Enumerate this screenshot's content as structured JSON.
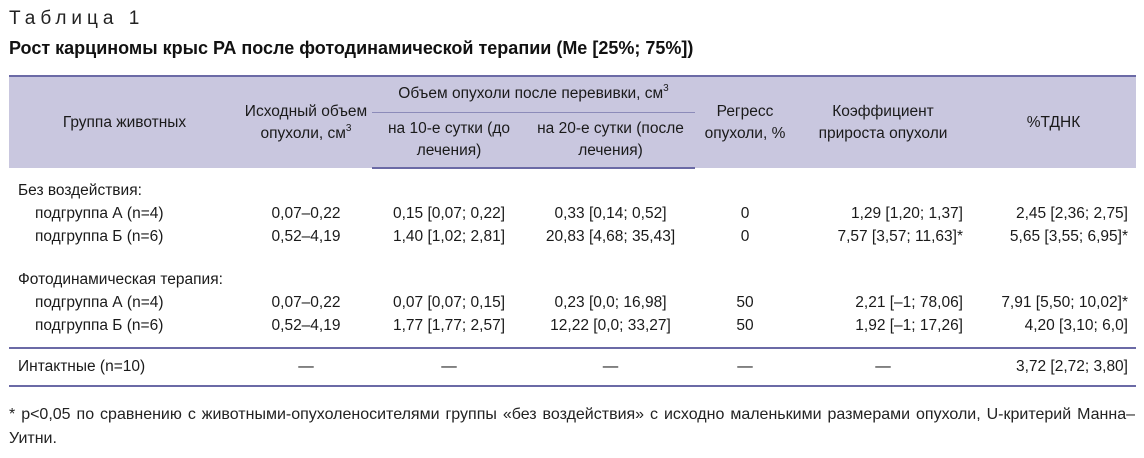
{
  "caption": "Таблица 1",
  "title": "Рост карциномы крыс РА после фотодинамической терапии (Ме [25%; 75%])",
  "headers": {
    "group": "Группа животных",
    "initial_volume": "Исходный объем опухоли, см",
    "initial_volume_sup": "3",
    "volume_after": "Объем опухоли после перевивки, см",
    "volume_after_sup": "3",
    "day10": "на 10-е сутки (до лечения)",
    "day20": "на 20-е сутки (после лечения)",
    "regress": "Регресс опухоли, %",
    "coef": "Коэффициент прироста опухоли",
    "tdnk": "%ТДНК"
  },
  "groups": [
    {
      "name": "Без воздействия:",
      "rows": [
        {
          "label": "подгруппа А (n=4)",
          "initial": "0,07–0,22",
          "day10": "0,15 [0,07; 0,22]",
          "day20": "0,33 [0,14; 0,52]",
          "regress": "0",
          "coef": "1,29 [1,20; 1,37]",
          "tdnk": "2,45 [2,36; 2,75]"
        },
        {
          "label": "подгруппа Б (n=6)",
          "initial": "0,52–4,19",
          "day10": "1,40 [1,02; 2,81]",
          "day20": "20,83 [4,68; 35,43]",
          "regress": "0",
          "coef": "7,57 [3,57; 11,63]*",
          "tdnk": "5,65 [3,55; 6,95]*"
        }
      ]
    },
    {
      "name": "Фотодинамическая терапия:",
      "rows": [
        {
          "label": "подгруппа А (n=4)",
          "initial": "0,07–0,22",
          "day10": "0,07 [0,07; 0,15]",
          "day20": "0,23 [0,0; 16,98]",
          "regress": "50",
          "coef": "2,21 [–1; 78,06]",
          "tdnk": "7,91 [5,50; 10,02]*"
        },
        {
          "label": "подгруппа Б (n=6)",
          "initial": "0,52–4,19",
          "day10": "1,77 [1,77; 2,57]",
          "day20": "12,22 [0,0; 33,27]",
          "regress": "50",
          "coef": "1,92 [–1; 17,26]",
          "tdnk": "4,20 [3,10; 6,0]"
        }
      ]
    }
  ],
  "intact": {
    "label": "Интактные (n=10)",
    "initial": "—",
    "day10": "—",
    "day20": "—",
    "regress": "—",
    "coef": "—",
    "tdnk": "3,72 [2,72; 3,80]"
  },
  "footnote": "* p<0,05 по сравнению с животными-опухоленосителями группы «без воздействия» с исходно маленькими размерами опухоли, U-критерий Манна–Уитни."
}
